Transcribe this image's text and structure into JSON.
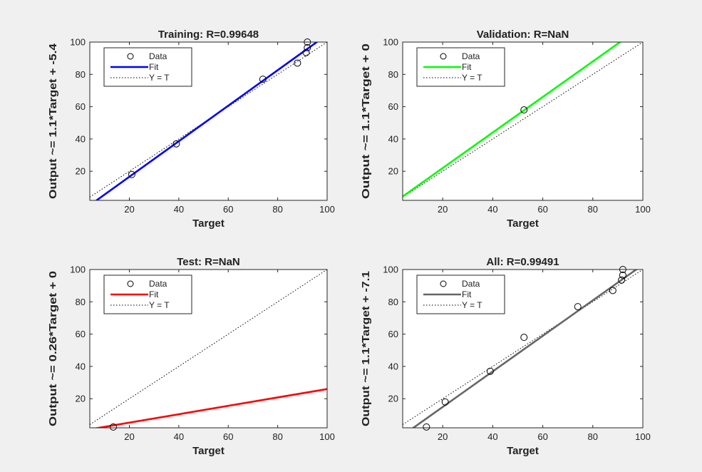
{
  "chart_data": [
    {
      "type": "scatter",
      "title": "Training: R=0.99648",
      "xlabel": "Target",
      "ylabel": "Output ~= 1.1*Target + -5.4",
      "xlim": [
        4,
        100
      ],
      "ylim": [
        2,
        100
      ],
      "xticks": [
        20,
        40,
        60,
        80,
        100
      ],
      "yticks": [
        20,
        40,
        60,
        80,
        100
      ],
      "fit_color": "#0000ff",
      "fit": {
        "slope": 1.1,
        "intercept": -5.4
      },
      "points": [
        {
          "x": 21,
          "y": 18
        },
        {
          "x": 39,
          "y": 37
        },
        {
          "x": 74,
          "y": 77
        },
        {
          "x": 88,
          "y": 87
        },
        {
          "x": 91.5,
          "y": 93.5
        },
        {
          "x": 92,
          "y": 96.5
        },
        {
          "x": 92,
          "y": 100
        }
      ],
      "legend": {
        "data": "Data",
        "fit": "Fit",
        "yt": "Y = T"
      }
    },
    {
      "type": "scatter",
      "title": "Validation: R=NaN",
      "xlabel": "Target",
      "ylabel": "Output ~= 1.1*Target + 0",
      "xlim": [
        4,
        100
      ],
      "ylim": [
        2,
        100
      ],
      "xticks": [
        20,
        40,
        60,
        80,
        100
      ],
      "yticks": [
        20,
        40,
        60,
        80,
        100
      ],
      "fit_color": "#00ff00",
      "fit": {
        "slope": 1.1,
        "intercept": 0
      },
      "points": [
        {
          "x": 52.5,
          "y": 58
        }
      ],
      "legend": {
        "data": "Data",
        "fit": "Fit",
        "yt": "Y = T"
      }
    },
    {
      "type": "scatter",
      "title": "Test: R=NaN",
      "xlabel": "Target",
      "ylabel": "Output ~= 0.26*Target + 0",
      "xlim": [
        4,
        100
      ],
      "ylim": [
        2,
        100
      ],
      "xticks": [
        20,
        40,
        60,
        80,
        100
      ],
      "yticks": [
        20,
        40,
        60,
        80,
        100
      ],
      "fit_color": "#ff0000",
      "fit": {
        "slope": 0.26,
        "intercept": 0
      },
      "points": [
        {
          "x": 13.5,
          "y": 2.5
        }
      ],
      "legend": {
        "data": "Data",
        "fit": "Fit",
        "yt": "Y = T"
      }
    },
    {
      "type": "scatter",
      "title": "All: R=0.99491",
      "xlabel": "Target",
      "ylabel": "Output ~= 1.1*Target + -7.1",
      "xlim": [
        4,
        100
      ],
      "ylim": [
        2,
        100
      ],
      "xticks": [
        20,
        40,
        60,
        80,
        100
      ],
      "yticks": [
        20,
        40,
        60,
        80,
        100
      ],
      "fit_color": "#666666",
      "fit": {
        "slope": 1.1,
        "intercept": -7.1
      },
      "points": [
        {
          "x": 13.5,
          "y": 2.5
        },
        {
          "x": 21,
          "y": 18
        },
        {
          "x": 39,
          "y": 37
        },
        {
          "x": 52.5,
          "y": 58
        },
        {
          "x": 74,
          "y": 77
        },
        {
          "x": 88,
          "y": 87
        },
        {
          "x": 91.5,
          "y": 93.5
        },
        {
          "x": 92,
          "y": 96.5
        },
        {
          "x": 92,
          "y": 100
        }
      ],
      "legend": {
        "data": "Data",
        "fit": "Fit",
        "yt": "Y = T"
      }
    }
  ],
  "colors": {
    "background": "#f0f0f0",
    "axes_bg": "#ffffff",
    "identity_line": "#000000"
  }
}
